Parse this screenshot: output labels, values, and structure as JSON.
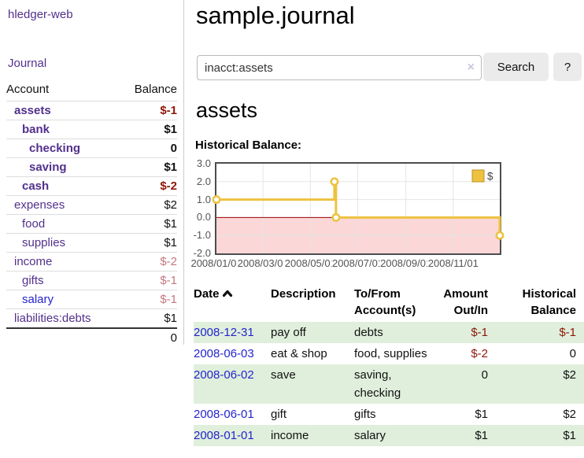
{
  "brand": "hledger-web",
  "nav": {
    "journal": "Journal"
  },
  "sidebar": {
    "account_header": "Account",
    "balance_header": "Balance",
    "accounts": [
      {
        "name": "assets",
        "balance": "$-1"
      },
      {
        "name": "bank",
        "balance": "$1"
      },
      {
        "name": "checking",
        "balance": "0"
      },
      {
        "name": "saving",
        "balance": "$1"
      },
      {
        "name": "cash",
        "balance": "$-2"
      },
      {
        "name": "expenses",
        "balance": "$2"
      },
      {
        "name": "food",
        "balance": "$1"
      },
      {
        "name": "supplies",
        "balance": "$1"
      },
      {
        "name": "income",
        "balance": "$-2"
      },
      {
        "name": "gifts",
        "balance": "$-1"
      },
      {
        "name": "salary",
        "balance": "$-1"
      },
      {
        "name": "liabilities:debts",
        "balance": "$1"
      }
    ],
    "total": "0"
  },
  "main": {
    "title": "sample.journal",
    "account_title": "assets",
    "chart_label": "Historical Balance:"
  },
  "search": {
    "query": "inacct:assets",
    "clear_icon": "×",
    "search_button": "Search",
    "help_button": "?"
  },
  "chart_data": {
    "type": "line",
    "step": true,
    "title": "Historical Balance:",
    "x_range": [
      "2008-01-01",
      "2008-12-31"
    ],
    "ylim": [
      -2,
      3
    ],
    "y_ticks": [
      3,
      2,
      1,
      0,
      -1,
      -2
    ],
    "x_ticks": [
      "2008/01/01",
      "2008/03/01",
      "2008/05/01",
      "2008/07/01",
      "2008/09/01",
      "2008/11/01"
    ],
    "series": [
      {
        "name": "$",
        "color": "#EDC240",
        "points": [
          {
            "date": "2008-01-01",
            "value": 1
          },
          {
            "date": "2008-06-01",
            "value": 2
          },
          {
            "date": "2008-06-03",
            "value": 0
          },
          {
            "date": "2008-12-31",
            "value": -1
          }
        ]
      }
    ],
    "legend_position": "top-right",
    "grid": true,
    "grid_color": "#e5e5e5",
    "zero_line_color": "#990000",
    "negative_region_color": "#fbd7d7"
  },
  "register": {
    "headers": {
      "date": "Date",
      "description": "Description",
      "accounts": "To/From Account(s)",
      "amount": "Amount Out/In",
      "balance": "Historical Balance"
    },
    "rows": [
      {
        "date": "2008-12-31",
        "description": "pay off",
        "accounts": "debts",
        "amount": "$-1",
        "balance": "$-1"
      },
      {
        "date": "2008-06-03",
        "description": "eat & shop",
        "accounts": "food, supplies",
        "amount": "$-2",
        "balance": "0"
      },
      {
        "date": "2008-06-02",
        "description": "save",
        "accounts": "saving, checking",
        "amount": "0",
        "balance": "$2"
      },
      {
        "date": "2008-06-01",
        "description": "gift",
        "accounts": "gifts",
        "amount": "$1",
        "balance": "$2"
      },
      {
        "date": "2008-01-01",
        "description": "income",
        "accounts": "salary",
        "amount": "$1",
        "balance": "$1"
      }
    ]
  }
}
